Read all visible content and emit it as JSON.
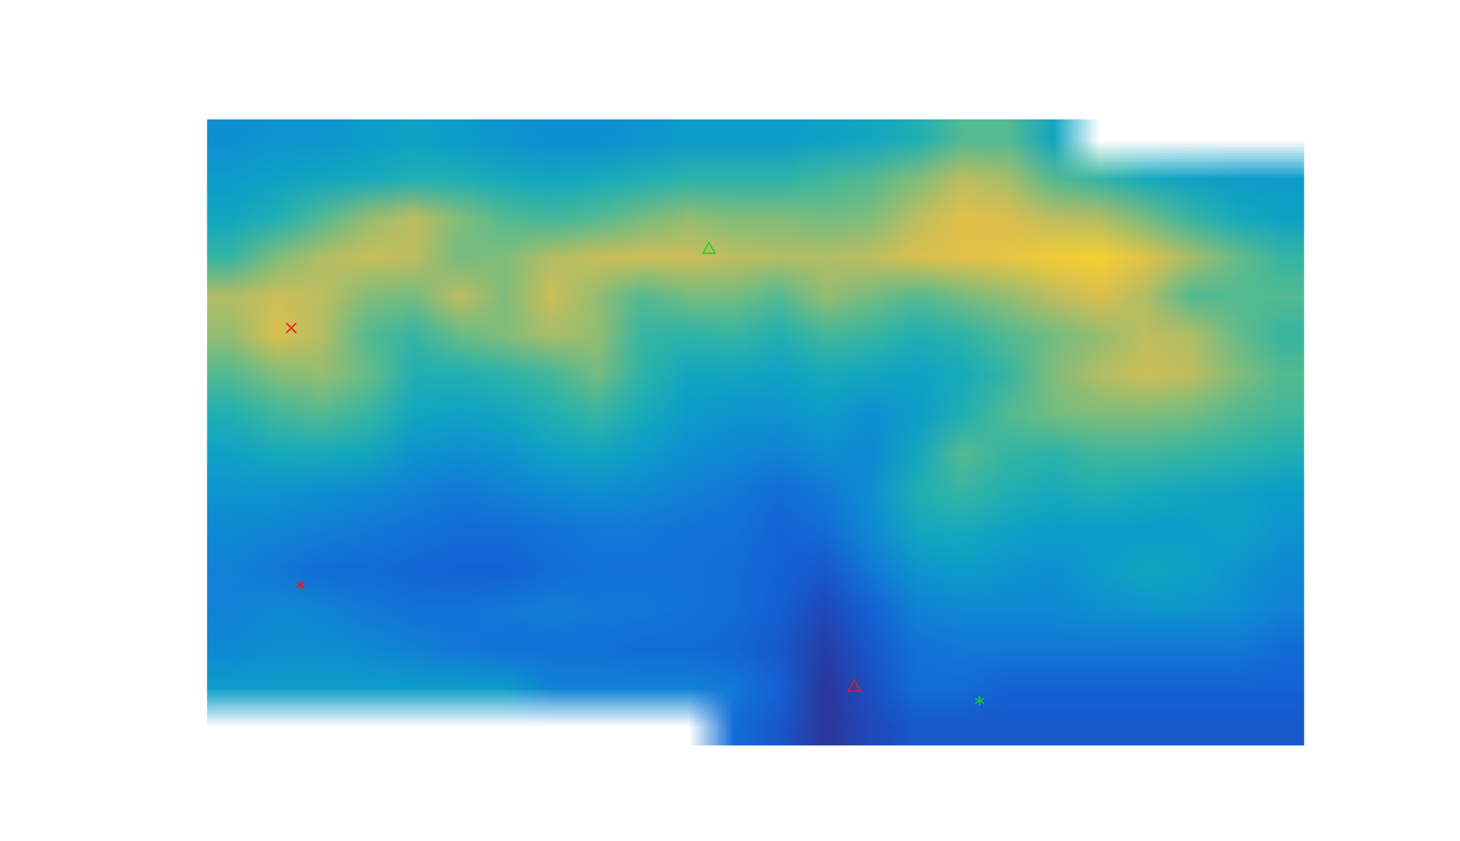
{
  "chart_data": {
    "type": "surface",
    "tick_labels": false,
    "xlim": [
      0,
      24
    ],
    "ylim": [
      0,
      16
    ],
    "clim": [
      0,
      100
    ],
    "cells": [
      [
        30,
        32,
        32,
        35,
        38,
        35,
        32,
        30,
        30,
        32,
        35,
        35,
        35,
        38,
        40,
        45,
        55,
        55,
        40,
        null,
        null,
        null,
        null,
        null
      ],
      [
        35,
        38,
        40,
        42,
        45,
        45,
        42,
        40,
        42,
        45,
        48,
        48,
        48,
        52,
        55,
        62,
        72,
        68,
        55,
        50,
        42,
        38,
        35,
        35
      ],
      [
        40,
        45,
        55,
        65,
        72,
        62,
        55,
        52,
        55,
        60,
        65,
        62,
        62,
        60,
        62,
        72,
        80,
        78,
        72,
        70,
        60,
        50,
        42,
        38
      ],
      [
        50,
        62,
        70,
        74,
        72,
        60,
        62,
        70,
        74,
        75,
        75,
        72,
        70,
        70,
        72,
        78,
        80,
        82,
        86,
        88,
        80,
        68,
        58,
        50
      ],
      [
        70,
        75,
        72,
        62,
        60,
        72,
        62,
        75,
        65,
        55,
        60,
        60,
        55,
        65,
        60,
        55,
        60,
        65,
        72,
        78,
        70,
        55,
        55,
        55
      ],
      [
        65,
        78,
        70,
        55,
        50,
        58,
        62,
        68,
        65,
        50,
        48,
        50,
        45,
        52,
        50,
        45,
        48,
        55,
        60,
        65,
        72,
        70,
        58,
        50
      ],
      [
        55,
        62,
        65,
        58,
        45,
        45,
        48,
        52,
        60,
        48,
        40,
        40,
        38,
        42,
        40,
        38,
        42,
        50,
        62,
        70,
        75,
        72,
        62,
        55
      ],
      [
        45,
        52,
        55,
        50,
        40,
        38,
        40,
        45,
        50,
        42,
        35,
        32,
        32,
        35,
        30,
        35,
        45,
        55,
        60,
        62,
        62,
        60,
        55,
        52
      ],
      [
        38,
        42,
        42,
        40,
        32,
        30,
        32,
        38,
        40,
        35,
        30,
        28,
        25,
        30,
        28,
        40,
        55,
        50,
        48,
        52,
        52,
        50,
        48,
        45
      ],
      [
        32,
        32,
        30,
        28,
        25,
        22,
        25,
        28,
        30,
        28,
        25,
        22,
        18,
        22,
        30,
        45,
        50,
        45,
        42,
        45,
        42,
        40,
        38,
        35
      ],
      [
        28,
        26,
        24,
        22,
        20,
        18,
        18,
        20,
        22,
        22,
        20,
        20,
        15,
        18,
        28,
        40,
        42,
        38,
        35,
        35,
        35,
        35,
        38,
        32
      ],
      [
        25,
        22,
        18,
        18,
        16,
        15,
        15,
        18,
        20,
        20,
        20,
        18,
        15,
        12,
        22,
        32,
        35,
        32,
        30,
        35,
        40,
        38,
        32,
        28
      ],
      [
        25,
        28,
        26,
        22,
        20,
        20,
        22,
        24,
        22,
        22,
        20,
        18,
        14,
        8,
        15,
        25,
        28,
        28,
        28,
        30,
        32,
        32,
        30,
        25
      ],
      [
        28,
        30,
        30,
        28,
        25,
        22,
        20,
        20,
        20,
        18,
        18,
        16,
        12,
        5,
        12,
        20,
        22,
        22,
        22,
        22,
        22,
        22,
        22,
        18
      ],
      [
        35,
        35,
        35,
        35,
        35,
        35,
        35,
        25,
        25,
        25,
        25,
        22,
        15,
        3,
        10,
        18,
        18,
        15,
        15,
        15,
        15,
        15,
        15,
        15
      ],
      [
        null,
        null,
        null,
        null,
        null,
        null,
        null,
        null,
        null,
        null,
        null,
        18,
        12,
        3,
        8,
        12,
        12,
        12,
        12,
        12,
        12,
        12,
        12,
        12
      ]
    ],
    "points": [
      {
        "x": 1.84,
        "y": 5.33,
        "color": "#e41a1c",
        "marker": "times"
      },
      {
        "x": 10.98,
        "y": 3.33,
        "color": "#22cc22",
        "marker": "triangle"
      },
      {
        "x": 2.04,
        "y": 11.9,
        "color": "#e41a1c",
        "marker": "asterisk"
      },
      {
        "x": 14.16,
        "y": 14.52,
        "color": "#e41a1c",
        "marker": "triangle"
      },
      {
        "x": 16.9,
        "y": 14.86,
        "color": "#22cc22",
        "marker": "asterisk"
      }
    ]
  }
}
